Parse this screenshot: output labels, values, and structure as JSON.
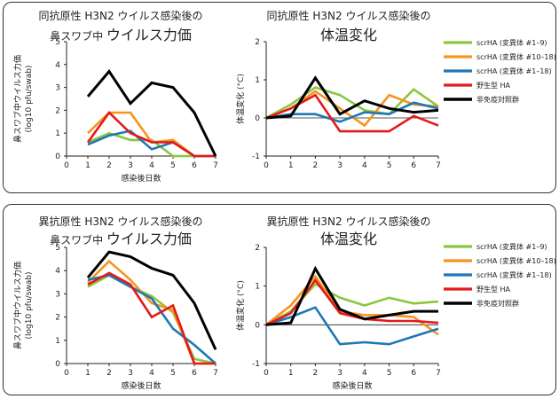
{
  "colors": {
    "scr1_9": "#8cc63f",
    "scr10_18": "#f7941d",
    "scr1_18": "#1f78b4",
    "wt": "#e41a1c",
    "ctrl": "#000000"
  },
  "legend": [
    "scrHA (変異体 #1–9)",
    "scrHA (変異体 #10–18)",
    "scrHA (変異体 #1–18)",
    "野生型 HA",
    "非免疫対照群"
  ],
  "chart_data": [
    {
      "type": "line",
      "title_line1": "同抗原性 H3N2 ウイルス感染後の",
      "title_line2_small": "鼻スワブ中",
      "title_line2_big": "ウイルス力価",
      "xlabel": "感染後日数",
      "ylabel_line1": "鼻スワブ中ウイルス力価",
      "ylabel_line2": "(log10 pfu/swab)",
      "xlim": [
        0,
        7
      ],
      "ylim": [
        0,
        5
      ],
      "x_ticks": [
        "0",
        "1",
        "2",
        "3",
        "4",
        "5",
        "6",
        "7"
      ],
      "y_ticks": [
        "0",
        "1",
        "2",
        "3",
        "4",
        "5"
      ],
      "series": [
        {
          "name": "scrHA (変異体 #1–9)",
          "color_key": "scr1_9",
          "x": [
            1,
            2,
            3,
            4,
            5,
            6,
            7
          ],
          "values": [
            0.6,
            1.0,
            0.7,
            0.7,
            0.0,
            0.0,
            0.0
          ]
        },
        {
          "name": "scrHA (変異体 #10–18)",
          "color_key": "scr10_18",
          "x": [
            1,
            2,
            3,
            4,
            5,
            6,
            7
          ],
          "values": [
            1.0,
            1.9,
            1.9,
            0.6,
            0.7,
            0.0,
            0.0
          ]
        },
        {
          "name": "scrHA (変異体 #1–18)",
          "color_key": "scr1_18",
          "x": [
            1,
            2,
            3,
            4,
            5,
            6,
            7
          ],
          "values": [
            0.5,
            0.9,
            1.1,
            0.3,
            0.6,
            0.0,
            0.0
          ]
        },
        {
          "name": "野生型 HA",
          "color_key": "wt",
          "x": [
            1,
            2,
            3,
            4,
            5,
            6,
            7
          ],
          "values": [
            0.6,
            1.9,
            1.0,
            0.6,
            0.6,
            0.0,
            0.0
          ]
        },
        {
          "name": "非免疫対照群",
          "color_key": "ctrl",
          "x": [
            1,
            2,
            3,
            4,
            5,
            6,
            7
          ],
          "values": [
            2.6,
            3.7,
            2.3,
            3.2,
            3.0,
            1.9,
            0.0
          ]
        }
      ]
    },
    {
      "type": "line",
      "title_line1": "同抗原性 H3N2 ウイルス感染後の",
      "title_line2_small": "",
      "title_line2_big": "体温変化",
      "xlabel": "",
      "ylabel_line1": "体温変化 (°C)",
      "ylabel_line2": "",
      "xlim": [
        0,
        7
      ],
      "ylim": [
        -1,
        2
      ],
      "x_ticks": [
        "0",
        "1",
        "2",
        "3",
        "4",
        "5",
        "6",
        "7"
      ],
      "y_ticks": [
        "-1",
        "0",
        "1",
        "2"
      ],
      "series": [
        {
          "name": "scrHA (変異体 #1–9)",
          "color_key": "scr1_9",
          "x": [
            0,
            1,
            2,
            3,
            4,
            5,
            6,
            7
          ],
          "values": [
            0,
            0.35,
            0.8,
            0.6,
            0.2,
            0.1,
            0.75,
            0.3
          ]
        },
        {
          "name": "scrHA (変異体 #10–18)",
          "color_key": "scr10_18",
          "x": [
            0,
            1,
            2,
            3,
            4,
            5,
            6,
            7
          ],
          "values": [
            0,
            0.25,
            0.7,
            0.25,
            -0.2,
            0.6,
            0.35,
            0.3
          ]
        },
        {
          "name": "scrHA (変異体 #1–18)",
          "color_key": "scr1_18",
          "x": [
            0,
            1,
            2,
            3,
            4,
            5,
            6,
            7
          ],
          "values": [
            0,
            0.1,
            0.1,
            -0.1,
            0.15,
            0.1,
            0.4,
            0.25
          ]
        },
        {
          "name": "野生型 HA",
          "color_key": "wt",
          "x": [
            0,
            1,
            2,
            3,
            4,
            5,
            6,
            7
          ],
          "values": [
            0,
            0.25,
            0.6,
            -0.35,
            -0.35,
            -0.35,
            0.05,
            -0.2
          ]
        },
        {
          "name": "非免疫対照群",
          "color_key": "ctrl",
          "x": [
            0,
            1,
            2,
            3,
            4,
            5,
            6,
            7
          ],
          "values": [
            0,
            0.05,
            1.05,
            0.1,
            0.45,
            0.25,
            0.15,
            0.2
          ]
        }
      ]
    },
    {
      "type": "line",
      "title_line1": "異抗原性 H3N2 ウイルス感染後の",
      "title_line2_small": "鼻スワブ中",
      "title_line2_big": "ウイルス力価",
      "xlabel": "感染後日数",
      "ylabel_line1": "鼻スワブ中ウイルス力価",
      "ylabel_line2": "(log10 pfu/swab)",
      "xlim": [
        0,
        7
      ],
      "ylim": [
        0,
        5
      ],
      "x_ticks": [
        "0",
        "1",
        "2",
        "3",
        "4",
        "5",
        "6",
        "7"
      ],
      "y_ticks": [
        "0",
        "1",
        "2",
        "3",
        "4",
        "5"
      ],
      "series": [
        {
          "name": "scrHA (変異体 #1–9)",
          "color_key": "scr1_9",
          "x": [
            1,
            2,
            3,
            4,
            5,
            6,
            7
          ],
          "values": [
            3.3,
            3.8,
            3.3,
            2.9,
            2.2,
            0.2,
            0.0
          ]
        },
        {
          "name": "scrHA (変異体 #10–18)",
          "color_key": "scr10_18",
          "x": [
            1,
            2,
            3,
            4,
            5,
            6,
            7
          ],
          "values": [
            3.5,
            4.4,
            3.6,
            2.6,
            2.3,
            0.0,
            0.0
          ]
        },
        {
          "name": "scrHA (変異体 #1–18)",
          "color_key": "scr1_18",
          "x": [
            1,
            2,
            3,
            4,
            5,
            6,
            7
          ],
          "values": [
            3.6,
            3.8,
            3.3,
            2.8,
            1.5,
            0.8,
            0.0
          ]
        },
        {
          "name": "野生型 HA",
          "color_key": "wt",
          "x": [
            1,
            2,
            3,
            4,
            5,
            6,
            7
          ],
          "values": [
            3.4,
            3.9,
            3.4,
            2.0,
            2.5,
            0.0,
            0.0
          ]
        },
        {
          "name": "非免疫対照群",
          "color_key": "ctrl",
          "x": [
            1,
            2,
            3,
            4,
            5,
            6,
            7
          ],
          "values": [
            3.7,
            4.8,
            4.6,
            4.1,
            3.8,
            2.6,
            0.6
          ]
        }
      ]
    },
    {
      "type": "line",
      "title_line1": "異抗原性 H3N2 ウイルス感染後の",
      "title_line2_small": "",
      "title_line2_big": "体温変化",
      "xlabel": "感染後日数",
      "ylabel_line1": "体温変化 (°C)",
      "ylabel_line2": "",
      "xlim": [
        0,
        7
      ],
      "ylim": [
        -1,
        2
      ],
      "x_ticks": [
        "0",
        "1",
        "2",
        "3",
        "4",
        "5",
        "6",
        "7"
      ],
      "y_ticks": [
        "-1",
        "0",
        "1",
        "2"
      ],
      "series": [
        {
          "name": "scrHA (変異体 #1–9)",
          "color_key": "scr1_9",
          "x": [
            0,
            1,
            2,
            3,
            4,
            5,
            6,
            7
          ],
          "values": [
            0,
            0.35,
            1.05,
            0.7,
            0.5,
            0.7,
            0.55,
            0.6
          ]
        },
        {
          "name": "scrHA (変異体 #10–18)",
          "color_key": "scr10_18",
          "x": [
            0,
            1,
            2,
            3,
            4,
            5,
            6,
            7
          ],
          "values": [
            0,
            0.5,
            1.25,
            0.35,
            0.25,
            0.25,
            0.2,
            -0.25
          ]
        },
        {
          "name": "scrHA (変異体 #1–18)",
          "color_key": "scr1_18",
          "x": [
            0,
            1,
            2,
            3,
            4,
            5,
            6,
            7
          ],
          "values": [
            0,
            0.2,
            0.45,
            -0.5,
            -0.45,
            -0.5,
            -0.3,
            -0.1
          ]
        },
        {
          "name": "野生型 HA",
          "color_key": "wt",
          "x": [
            0,
            1,
            2,
            3,
            4,
            5,
            6,
            7
          ],
          "values": [
            0,
            0.3,
            1.15,
            0.3,
            0.15,
            0.1,
            0.1,
            0.05
          ]
        },
        {
          "name": "非免疫対照群",
          "color_key": "ctrl",
          "x": [
            0,
            1,
            2,
            3,
            4,
            5,
            6,
            7
          ],
          "values": [
            0,
            0.05,
            1.45,
            0.4,
            0.15,
            0.25,
            0.35,
            0.35
          ]
        }
      ]
    }
  ]
}
